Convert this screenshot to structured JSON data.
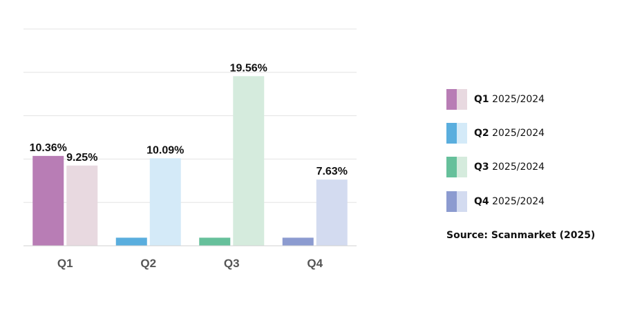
{
  "chart_data": {
    "type": "bar",
    "categories": [
      "Q1",
      "Q2",
      "Q3",
      "Q4"
    ],
    "series": [
      {
        "name": "2025",
        "values": [
          10.36,
          0.93,
          0.93,
          0.93
        ],
        "labels": [
          "10.36%",
          "",
          "",
          ""
        ],
        "colors": [
          "#b87db5",
          "#5aaede",
          "#66c09b",
          "#8c9bd0"
        ]
      },
      {
        "name": "2024",
        "values": [
          9.25,
          10.09,
          19.56,
          7.63
        ],
        "labels": [
          "9.25%",
          "10.09%",
          "19.56%",
          "7.63%"
        ],
        "colors": [
          "#e8d9e0",
          "#d4eaf8",
          "#d5ebdd",
          "#d3dbf0"
        ]
      }
    ],
    "ylim": [
      0,
      25
    ],
    "grid": true,
    "legend": "right",
    "title": "",
    "xlabel": "",
    "ylabel": ""
  },
  "legend": {
    "items": [
      {
        "quarter": "Q1",
        "years": "2025/2024",
        "color_current": "#b87db5",
        "color_previous": "#e8d9e0"
      },
      {
        "quarter": "Q2",
        "years": "2025/2024",
        "color_current": "#5aaede",
        "color_previous": "#d4eaf8"
      },
      {
        "quarter": "Q3",
        "years": "2025/2024",
        "color_current": "#66c09b",
        "color_previous": "#d5ebdd"
      },
      {
        "quarter": "Q4",
        "years": "2025/2024",
        "color_current": "#8c9bd0",
        "color_previous": "#d3dbf0"
      }
    ]
  },
  "source": "Source: Scanmarket (2025)"
}
